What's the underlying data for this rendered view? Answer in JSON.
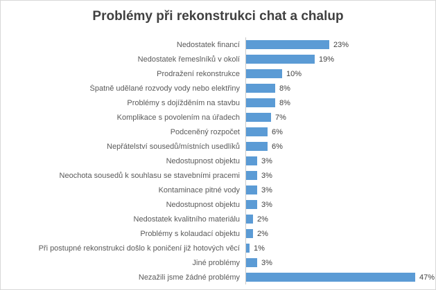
{
  "chart_data": {
    "type": "bar",
    "orientation": "horizontal",
    "title": "Problémy při rekonstrukci chat a chalup",
    "categories": [
      "Nedostatek financí",
      "Nedostatek řemeslníků v okolí",
      "Prodražení rekonstrukce",
      "Špatně udělané rozvody vody nebo elektřiny",
      "Problémy s dojížděním na stavbu",
      "Komplikace s povolením na úřadech",
      "Podceněný rozpočet",
      "Nepřátelství sousedů/místních usedlíků",
      "Nedostupnost objektu",
      "Neochota sousedů k souhlasu se stavebními pracemi",
      "Kontaminace pitné vody",
      "Nedostupnost objektu",
      "Nedostatek kvalitního materiálu",
      "Problémy s kolaudací objektu",
      "Při postupné rekonstrukci došlo k poničení již hotových věcí",
      "Jiné problémy",
      "Nezažili jsme žádné problémy"
    ],
    "values": [
      23,
      19,
      10,
      8,
      8,
      7,
      6,
      6,
      3,
      3,
      3,
      3,
      2,
      2,
      1,
      3,
      47
    ],
    "data_labels": [
      "23%",
      "19%",
      "10%",
      "8%",
      "8%",
      "7%",
      "6%",
      "6%",
      "3%",
      "3%",
      "3%",
      "3%",
      "2%",
      "2%",
      "1%",
      "3%",
      "47%"
    ],
    "value_suffix": "%",
    "xlabel": "",
    "ylabel": "",
    "xlim": [
      0,
      50
    ],
    "grid": false,
    "legend": false,
    "axis_labels_hidden": true,
    "bar_color": "#5b9bd5",
    "title_color": "#404040",
    "category_label_color": "#595959",
    "data_label_color": "#404040",
    "axis_line_color": "#c9c9c9",
    "chart_border_color": "#d7d7d7"
  }
}
